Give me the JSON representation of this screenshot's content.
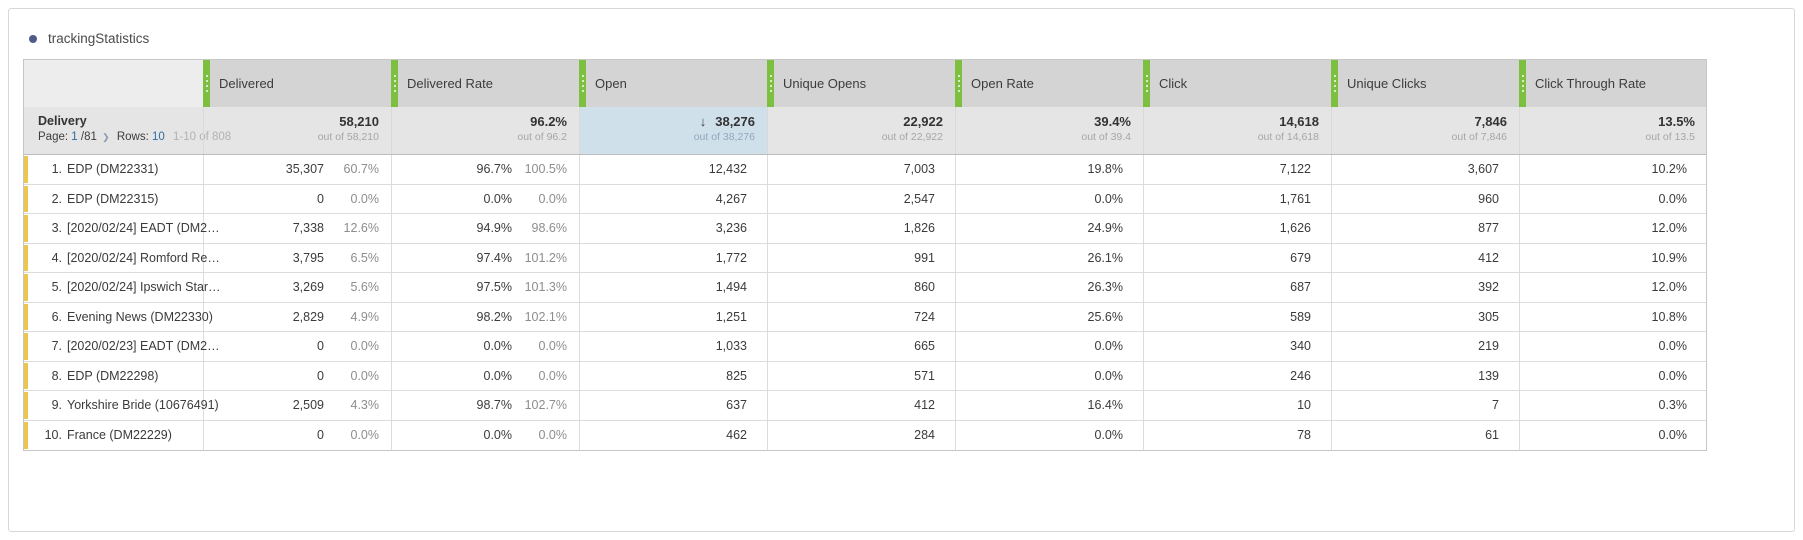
{
  "title": "trackingStatistics",
  "colors": {
    "accent_green": "#7dbf3f",
    "row_marker_yellow": "#ecc64f",
    "highlight_blue": "#cfe0eb",
    "link_blue": "#2e6da4",
    "bullet_indigo": "#4f5b88"
  },
  "table": {
    "group_label": "Delivery",
    "pagination": {
      "page_label": "Page:",
      "page_current": "1",
      "page_total": "/81",
      "chevron": "❯",
      "rows_label": "Rows:",
      "rows_value": "10",
      "range": "1-10 of 808"
    },
    "columns": [
      {
        "key": "delivered",
        "label": "Delivered"
      },
      {
        "key": "delivered_rate",
        "label": "Delivered Rate"
      },
      {
        "key": "open",
        "label": "Open"
      },
      {
        "key": "unique_opens",
        "label": "Unique Opens"
      },
      {
        "key": "open_rate",
        "label": "Open Rate"
      },
      {
        "key": "click",
        "label": "Click"
      },
      {
        "key": "unique_clicks",
        "label": "Unique Clicks"
      },
      {
        "key": "ctr",
        "label": "Click Through Rate"
      }
    ],
    "summary_cells": [
      {
        "value": "58,210",
        "out_of": "out of 58,210"
      },
      {
        "value": "96.2%",
        "out_of": "out of 96.2"
      },
      {
        "value": "38,276",
        "out_of": "out of 38,276",
        "highlighted": true,
        "sort_icon": "↓"
      },
      {
        "value": "22,922",
        "out_of": "out of 22,922"
      },
      {
        "value": "39.4%",
        "out_of": "out of 39.4"
      },
      {
        "value": "14,618",
        "out_of": "out of 14,618"
      },
      {
        "value": "7,846",
        "out_of": "out of 7,846"
      },
      {
        "value": "13.5%",
        "out_of": "out of 13.5"
      }
    ],
    "rows": [
      {
        "rank": "1.",
        "name": "EDP (DM22331)",
        "cells": {
          "delivered": {
            "v": "35,307",
            "pct": "60.7%"
          },
          "delivered_rate": {
            "v": "96.7%",
            "pct": "100.5%"
          },
          "open": "12,432",
          "unique_opens": "7,003",
          "open_rate": "19.8%",
          "click": "7,122",
          "unique_clicks": "3,607",
          "ctr": "10.2%"
        }
      },
      {
        "rank": "2.",
        "name": "EDP (DM22315)",
        "cells": {
          "delivered": {
            "v": "0",
            "pct": "0.0%"
          },
          "delivered_rate": {
            "v": "0.0%",
            "pct": "0.0%"
          },
          "open": "4,267",
          "unique_opens": "2,547",
          "open_rate": "0.0%",
          "click": "1,761",
          "unique_clicks": "960",
          "ctr": "0.0%"
        }
      },
      {
        "rank": "3.",
        "name": "[2020/02/24] EADT (DM2…",
        "cells": {
          "delivered": {
            "v": "7,338",
            "pct": "12.6%"
          },
          "delivered_rate": {
            "v": "94.9%",
            "pct": "98.6%"
          },
          "open": "3,236",
          "unique_opens": "1,826",
          "open_rate": "24.9%",
          "click": "1,626",
          "unique_clicks": "877",
          "ctr": "12.0%"
        }
      },
      {
        "rank": "4.",
        "name": "[2020/02/24] Romford Re…",
        "cells": {
          "delivered": {
            "v": "3,795",
            "pct": "6.5%"
          },
          "delivered_rate": {
            "v": "97.4%",
            "pct": "101.2%"
          },
          "open": "1,772",
          "unique_opens": "991",
          "open_rate": "26.1%",
          "click": "679",
          "unique_clicks": "412",
          "ctr": "10.9%"
        }
      },
      {
        "rank": "5.",
        "name": "[2020/02/24] Ipswich Star…",
        "cells": {
          "delivered": {
            "v": "3,269",
            "pct": "5.6%"
          },
          "delivered_rate": {
            "v": "97.5%",
            "pct": "101.3%"
          },
          "open": "1,494",
          "unique_opens": "860",
          "open_rate": "26.3%",
          "click": "687",
          "unique_clicks": "392",
          "ctr": "12.0%"
        }
      },
      {
        "rank": "6.",
        "name": "Evening News (DM22330)",
        "cells": {
          "delivered": {
            "v": "2,829",
            "pct": "4.9%"
          },
          "delivered_rate": {
            "v": "98.2%",
            "pct": "102.1%"
          },
          "open": "1,251",
          "unique_opens": "724",
          "open_rate": "25.6%",
          "click": "589",
          "unique_clicks": "305",
          "ctr": "10.8%"
        }
      },
      {
        "rank": "7.",
        "name": "[2020/02/23] EADT (DM2…",
        "cells": {
          "delivered": {
            "v": "0",
            "pct": "0.0%"
          },
          "delivered_rate": {
            "v": "0.0%",
            "pct": "0.0%"
          },
          "open": "1,033",
          "unique_opens": "665",
          "open_rate": "0.0%",
          "click": "340",
          "unique_clicks": "219",
          "ctr": "0.0%"
        }
      },
      {
        "rank": "8.",
        "name": "EDP (DM22298)",
        "cells": {
          "delivered": {
            "v": "0",
            "pct": "0.0%"
          },
          "delivered_rate": {
            "v": "0.0%",
            "pct": "0.0%"
          },
          "open": "825",
          "unique_opens": "571",
          "open_rate": "0.0%",
          "click": "246",
          "unique_clicks": "139",
          "ctr": "0.0%"
        }
      },
      {
        "rank": "9.",
        "name": "Yorkshire Bride (10676491)",
        "cells": {
          "delivered": {
            "v": "2,509",
            "pct": "4.3%"
          },
          "delivered_rate": {
            "v": "98.7%",
            "pct": "102.7%"
          },
          "open": "637",
          "unique_opens": "412",
          "open_rate": "16.4%",
          "click": "10",
          "unique_clicks": "7",
          "ctr": "0.3%"
        }
      },
      {
        "rank": "10.",
        "name": "France (DM22229)",
        "cells": {
          "delivered": {
            "v": "0",
            "pct": "0.0%"
          },
          "delivered_rate": {
            "v": "0.0%",
            "pct": "0.0%"
          },
          "open": "462",
          "unique_opens": "284",
          "open_rate": "0.0%",
          "click": "78",
          "unique_clicks": "61",
          "ctr": "0.0%"
        }
      }
    ]
  }
}
